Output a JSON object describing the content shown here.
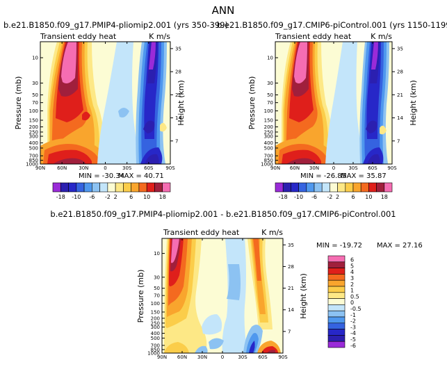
{
  "page_title": "ANN",
  "chart_data": [
    {
      "type": "heatmap",
      "title": "b.e21.B1850.f09_g17.PMIP4-pliomip2.001 (yrs 350-399)",
      "subtitle_left": "Transient eddy heat",
      "subtitle_right": "K m/s",
      "xlabel": "",
      "ylabel": "Pressure (mb)",
      "ylabel_right": "Height (km)",
      "x_ticks": [
        "90N",
        "60N",
        "30N",
        "0",
        "30S",
        "60S",
        "90S"
      ],
      "y_ticks": [
        "10",
        "30",
        "50",
        "70",
        "100",
        "150",
        "200",
        "250",
        "300",
        "400",
        "500",
        "700",
        "850",
        "1000"
      ],
      "y2_ticks": [
        "35",
        "28",
        "21",
        "14",
        "7"
      ],
      "min_label": "MIN = -30.34",
      "max_label": "MAX = 40.71",
      "colorbar_levels": [
        -18,
        -14,
        -10,
        -8,
        -6,
        -4,
        -2,
        2,
        4,
        6,
        8,
        10,
        14,
        18
      ],
      "colorbar_labels": [
        "-18",
        "-10",
        "-6",
        "-2",
        "2",
        "6",
        "10",
        "18"
      ]
    },
    {
      "type": "heatmap",
      "title": "b.e21.B1850.f09_g17.CMIP6-piControl.001 (yrs 1150-1199)",
      "subtitle_left": "Transient eddy heat",
      "subtitle_right": "K m/s",
      "xlabel": "",
      "ylabel": "Pressure (mb)",
      "ylabel_right": "Height (km)",
      "x_ticks": [
        "90N",
        "60N",
        "30N",
        "0",
        "30S",
        "60S",
        "90S"
      ],
      "y_ticks": [
        "10",
        "30",
        "50",
        "70",
        "100",
        "150",
        "200",
        "250",
        "300",
        "400",
        "500",
        "700",
        "850",
        "1000"
      ],
      "y2_ticks": [
        "35",
        "28",
        "21",
        "14",
        "7"
      ],
      "min_label": "MIN = -26.85",
      "max_label": "MAX = 35.87",
      "colorbar_levels": [
        -18,
        -14,
        -10,
        -8,
        -6,
        -4,
        -2,
        2,
        4,
        6,
        8,
        10,
        14,
        18
      ],
      "colorbar_labels": [
        "-18",
        "-10",
        "-6",
        "-2",
        "2",
        "6",
        "10",
        "18"
      ]
    },
    {
      "type": "heatmap",
      "title": "b.e21.B1850.f09_g17.PMIP4-pliomip2.001 - b.e21.B1850.f09_g17.CMIP6-piControl.001",
      "subtitle_left": "Transient eddy heat",
      "subtitle_right": "K m/s",
      "xlabel": "",
      "ylabel": "Pressure (mb)",
      "ylabel_right": "Height (km)",
      "x_ticks": [
        "90N",
        "60N",
        "30N",
        "0",
        "30S",
        "60S",
        "90S"
      ],
      "y_ticks": [
        "10",
        "30",
        "50",
        "70",
        "100",
        "150",
        "200",
        "250",
        "300",
        "400",
        "500",
        "700",
        "850",
        "1000"
      ],
      "y2_ticks": [
        "35",
        "28",
        "21",
        "14",
        "7"
      ],
      "min_label": "MIN = -19.72",
      "max_label": "MAX = 27.16",
      "colorbar_levels": [
        6,
        5,
        4,
        3,
        2,
        1,
        0.5,
        0,
        -0.5,
        -1,
        -2,
        -3,
        -4,
        -5,
        -6
      ],
      "colorbar_labels": [
        "6",
        "5",
        "4",
        "3",
        "2",
        "1",
        "0.5",
        "0",
        "-0.5",
        "-1",
        "-2",
        "-3",
        "-4",
        "-5",
        "-6"
      ]
    }
  ],
  "colors": {
    "mean_palette": [
      "#9a2bd8",
      "#2b1fb0",
      "#2727c8",
      "#3563e0",
      "#4f98ee",
      "#8cc2f2",
      "#c3e5fa",
      "#fcfcd4",
      "#fde886",
      "#fbcd4a",
      "#f9a52d",
      "#f46a1f",
      "#df1f1b",
      "#a01f3c",
      "#f56db2"
    ],
    "diff_palette": [
      "#f56db2",
      "#a01f3c",
      "#df1f1b",
      "#f46a1f",
      "#f9a52d",
      "#fbcd4a",
      "#fde886",
      "#fcfcd4",
      "#c3e5fa",
      "#8cc2f2",
      "#4f98ee",
      "#3563e0",
      "#2727c8",
      "#2b1fb0",
      "#9a2bd8"
    ]
  }
}
